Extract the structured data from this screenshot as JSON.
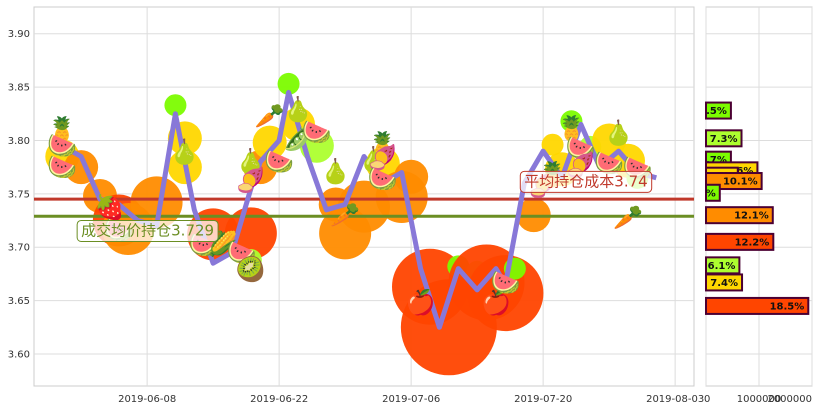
{
  "colors": {
    "price_line": "#8878d8",
    "avg_cost_line": "#c0392b",
    "avg_hold_line": "#6b8e23",
    "grid": "#dddddd",
    "bubble_small": "#7cfc00",
    "bubble_mid": "#ffd700",
    "bubble_large": "#ff8c00",
    "bubble_xl": "#ff4500"
  },
  "chart_data": [
    {
      "type": "line",
      "x_ticks": [
        "2019-06-08",
        "2019-06-22",
        "2019-07-06",
        "2019-07-20",
        "2019-08-03"
      ],
      "y_ticks": [
        "3.90",
        "3.85",
        "3.80",
        "3.75",
        "3.70",
        "3.65",
        "3.60"
      ],
      "ylim": [
        3.57,
        3.925
      ],
      "xlim": [
        "2019-05-27",
        "2019-08-05"
      ],
      "grid": true,
      "series": [
        {
          "values": [
            {
              "x": "2019-05-30",
              "y": 3.795
            },
            {
              "x": "2019-06-01",
              "y": 3.785
            },
            {
              "x": "2019-06-03",
              "y": 3.745
            },
            {
              "x": "2019-06-05",
              "y": 3.74
            },
            {
              "x": "2019-06-07",
              "y": 3.725
            },
            {
              "x": "2019-06-09",
              "y": 3.72
            },
            {
              "x": "2019-06-11",
              "y": 3.825
            },
            {
              "x": "2019-06-13",
              "y": 3.735
            },
            {
              "x": "2019-06-15",
              "y": 3.685
            },
            {
              "x": "2019-06-17",
              "y": 3.695
            },
            {
              "x": "2019-06-19",
              "y": 3.755
            },
            {
              "x": "2019-06-20",
              "y": 3.78
            },
            {
              "x": "2019-06-22",
              "y": 3.8
            },
            {
              "x": "2019-06-23",
              "y": 3.845
            },
            {
              "x": "2019-06-25",
              "y": 3.785
            },
            {
              "x": "2019-06-27",
              "y": 3.735
            },
            {
              "x": "2019-06-29",
              "y": 3.74
            },
            {
              "x": "2019-07-01",
              "y": 3.785
            },
            {
              "x": "2019-07-03",
              "y": 3.76
            },
            {
              "x": "2019-07-05",
              "y": 3.77
            },
            {
              "x": "2019-07-07",
              "y": 3.68
            },
            {
              "x": "2019-07-09",
              "y": 3.625
            },
            {
              "x": "2019-07-11",
              "y": 3.68
            },
            {
              "x": "2019-07-13",
              "y": 3.66
            },
            {
              "x": "2019-07-15",
              "y": 3.68
            },
            {
              "x": "2019-07-16",
              "y": 3.665
            },
            {
              "x": "2019-07-18",
              "y": 3.76
            },
            {
              "x": "2019-07-20",
              "y": 3.79
            },
            {
              "x": "2019-07-22",
              "y": 3.765
            },
            {
              "x": "2019-07-24",
              "y": 3.815
            },
            {
              "x": "2019-07-26",
              "y": 3.775
            },
            {
              "x": "2019-07-28",
              "y": 3.79
            },
            {
              "x": "2019-07-30",
              "y": 3.77
            },
            {
              "x": "2019-08-01",
              "y": 3.765
            }
          ]
        }
      ],
      "reference_lines": [
        {
          "y": 3.745,
          "color": "#c0392b"
        },
        {
          "y": 3.729,
          "color": "#6b8e23"
        }
      ],
      "annotations": [
        {
          "text": "平均持仓成本3.74",
          "x": "2019-07-18",
          "y": 3.757,
          "color": "#c0392b"
        },
        {
          "text": "成交均价持仓3.729",
          "x": "2019-06-01",
          "y": 3.711,
          "color": "#6b8e23"
        }
      ]
    },
    {
      "type": "bar",
      "orientation": "horizontal",
      "x_ticks": [
        "0",
        "1000000",
        "2000000"
      ],
      "xlim": [
        0,
        2000000
      ],
      "bars": [
        {
          "label": ".5%",
          "price": 3.828,
          "value": 470000,
          "color": "#7cfc00"
        },
        {
          "label": "7.3%",
          "price": 3.802,
          "value": 670000,
          "color": "#adff2f"
        },
        {
          "label": ".7%",
          "price": 3.782,
          "value": 470000,
          "color": "#7cfc00"
        },
        {
          "label": "9.6%",
          "price": 3.772,
          "value": 970000,
          "color": "#ffd700"
        },
        {
          "label": ".7%",
          "price": 3.767,
          "value": 600000,
          "color": "#ffd700"
        },
        {
          "label": "10.1%",
          "price": 3.762,
          "value": 1050000,
          "color": "#ff8c00"
        },
        {
          "label": "%",
          "price": 3.751,
          "value": 260000,
          "color": "#7cfc00"
        },
        {
          "label": "12.1%",
          "price": 3.73,
          "value": 1260000,
          "color": "#ff8c00"
        },
        {
          "label": "12.2%",
          "price": 3.705,
          "value": 1270000,
          "color": "#ff4500"
        },
        {
          "label": "6.1%",
          "price": 3.683,
          "value": 630000,
          "color": "#adff2f"
        },
        {
          "label": "7.4%",
          "price": 3.667,
          "value": 680000,
          "color": "#ffd700"
        },
        {
          "label": "18.5%",
          "price": 3.645,
          "value": 1930000,
          "color": "#ff4500"
        }
      ]
    }
  ],
  "fruits": [
    {
      "icon": "pineapple",
      "x": "2019-05-30",
      "y": 3.811
    },
    {
      "icon": "watermelon",
      "x": "2019-05-30",
      "y": 3.796
    },
    {
      "icon": "watermelon",
      "x": "2019-05-30",
      "y": 3.776
    },
    {
      "icon": "strawberry",
      "x": "2019-06-04",
      "y": 3.738
    },
    {
      "icon": "watermelon-slice",
      "x": "2019-06-05",
      "y": 3.717
    },
    {
      "icon": "pear",
      "x": "2019-06-12",
      "y": 3.79
    },
    {
      "icon": "watermelon-slice",
      "x": "2019-06-14",
      "y": 3.703
    },
    {
      "icon": "corn",
      "x": "2019-06-16",
      "y": 3.704
    },
    {
      "icon": "watermelon-slice",
      "x": "2019-06-18",
      "y": 3.696
    },
    {
      "icon": "kiwi",
      "x": "2019-06-19",
      "y": 3.68
    },
    {
      "icon": "pear",
      "x": "2019-06-19",
      "y": 3.781
    },
    {
      "icon": "radish",
      "x": "2019-06-19",
      "y": 3.764
    },
    {
      "icon": "carrot",
      "x": "2019-06-21",
      "y": 3.824
    },
    {
      "icon": "watermelon",
      "x": "2019-06-22",
      "y": 3.781
    },
    {
      "icon": "pea-pod",
      "x": "2019-06-24",
      "y": 3.803
    },
    {
      "icon": "pear",
      "x": "2019-06-24",
      "y": 3.83
    },
    {
      "icon": "watermelon",
      "x": "2019-06-26",
      "y": 3.809
    },
    {
      "icon": "pear",
      "x": "2019-06-28",
      "y": 3.772
    },
    {
      "icon": "carrot",
      "x": "2019-06-29",
      "y": 3.731
    },
    {
      "icon": "pear",
      "x": "2019-07-02",
      "y": 3.783
    },
    {
      "icon": "pineapple",
      "x": "2019-07-03",
      "y": 3.797
    },
    {
      "icon": "radish",
      "x": "2019-07-03",
      "y": 3.785
    },
    {
      "icon": "watermelon",
      "x": "2019-07-03",
      "y": 3.765
    },
    {
      "icon": "apple",
      "x": "2019-07-07",
      "y": 3.649
    },
    {
      "icon": "apple",
      "x": "2019-07-15",
      "y": 3.649
    },
    {
      "icon": "watermelon-slice",
      "x": "2019-07-16",
      "y": 3.668
    },
    {
      "icon": "radish",
      "x": "2019-07-20",
      "y": 3.759
    },
    {
      "icon": "pineapple",
      "x": "2019-07-21",
      "y": 3.769
    },
    {
      "icon": "pineapple",
      "x": "2019-07-23",
      "y": 3.812
    },
    {
      "icon": "watermelon",
      "x": "2019-07-24",
      "y": 3.794
    },
    {
      "icon": "radish",
      "x": "2019-07-24",
      "y": 3.778
    },
    {
      "icon": "pear",
      "x": "2019-07-28",
      "y": 3.808
    },
    {
      "icon": "watermelon",
      "x": "2019-07-27",
      "y": 3.78
    },
    {
      "icon": "carrot",
      "x": "2019-07-29",
      "y": 3.729
    },
    {
      "icon": "watermelon",
      "x": "2019-07-30",
      "y": 3.775
    }
  ],
  "bubbles": [
    {
      "x": "2019-05-30",
      "y": 3.785,
      "size": 2,
      "color": "#ffd700"
    },
    {
      "x": "2019-06-01",
      "y": 3.775,
      "size": 2,
      "color": "#ff8c00"
    },
    {
      "x": "2019-06-03",
      "y": 3.748,
      "size": 2,
      "color": "#ff8c00"
    },
    {
      "x": "2019-06-05",
      "y": 3.725,
      "size": 3,
      "color": "#ff4500"
    },
    {
      "x": "2019-06-06",
      "y": 3.717,
      "size": 3,
      "color": "#ff8c00"
    },
    {
      "x": "2019-06-09",
      "y": 3.742,
      "size": 3,
      "color": "#ff8c00"
    },
    {
      "x": "2019-06-11",
      "y": 3.833,
      "size": 1,
      "color": "#7cfc00"
    },
    {
      "x": "2019-06-12",
      "y": 3.802,
      "size": 2,
      "color": "#ffd700"
    },
    {
      "x": "2019-06-12",
      "y": 3.775,
      "size": 2,
      "color": "#ffd700"
    },
    {
      "x": "2019-06-15",
      "y": 3.712,
      "size": 3,
      "color": "#ff4500"
    },
    {
      "x": "2019-06-19",
      "y": 3.713,
      "size": 3,
      "color": "#ff4500"
    },
    {
      "x": "2019-06-19",
      "y": 3.688,
      "size": 1,
      "color": "#adff2f"
    },
    {
      "x": "2019-06-20",
      "y": 3.775,
      "size": 2,
      "color": "#ff8c00"
    },
    {
      "x": "2019-06-21",
      "y": 3.798,
      "size": 2,
      "color": "#ffd700"
    },
    {
      "x": "2019-06-23",
      "y": 3.853,
      "size": 1,
      "color": "#7cfc00"
    },
    {
      "x": "2019-06-24",
      "y": 3.815,
      "size": 2,
      "color": "#ffd700"
    },
    {
      "x": "2019-06-26",
      "y": 3.795,
      "size": 2,
      "color": "#adff2f"
    },
    {
      "x": "2019-06-28",
      "y": 3.74,
      "size": 2,
      "color": "#ff8c00"
    },
    {
      "x": "2019-06-29",
      "y": 3.713,
      "size": 3,
      "color": "#ff8c00"
    },
    {
      "x": "2019-07-01",
      "y": 3.738,
      "size": 3,
      "color": "#ff8c00"
    },
    {
      "x": "2019-07-03",
      "y": 3.778,
      "size": 2,
      "color": "#ffd700"
    },
    {
      "x": "2019-07-05",
      "y": 3.747,
      "size": 3,
      "color": "#ff8c00"
    },
    {
      "x": "2019-07-06",
      "y": 3.766,
      "size": 2,
      "color": "#ff8c00"
    },
    {
      "x": "2019-07-08",
      "y": 3.663,
      "size": 4,
      "color": "#ff4500"
    },
    {
      "x": "2019-07-10",
      "y": 3.625,
      "size": 5,
      "color": "#ff4500"
    },
    {
      "x": "2019-07-11",
      "y": 3.682,
      "size": 1,
      "color": "#7cfc00"
    },
    {
      "x": "2019-07-13",
      "y": 3.677,
      "size": 1,
      "color": "#adff2f"
    },
    {
      "x": "2019-07-14",
      "y": 3.667,
      "size": 4,
      "color": "#ff4500"
    },
    {
      "x": "2019-07-16",
      "y": 3.657,
      "size": 4,
      "color": "#ff4500"
    },
    {
      "x": "2019-07-17",
      "y": 3.68,
      "size": 1,
      "color": "#7cfc00"
    },
    {
      "x": "2019-07-19",
      "y": 3.73,
      "size": 2,
      "color": "#ff8c00"
    },
    {
      "x": "2019-07-21",
      "y": 3.796,
      "size": 1,
      "color": "#ffd700"
    },
    {
      "x": "2019-07-22",
      "y": 3.773,
      "size": 2,
      "color": "#ffd700"
    },
    {
      "x": "2019-07-23",
      "y": 3.818,
      "size": 1,
      "color": "#7cfc00"
    },
    {
      "x": "2019-07-25",
      "y": 3.794,
      "size": 1,
      "color": "#adff2f"
    },
    {
      "x": "2019-07-27",
      "y": 3.8,
      "size": 2,
      "color": "#ffd700"
    },
    {
      "x": "2019-07-29",
      "y": 3.781,
      "size": 2,
      "color": "#ffd700"
    },
    {
      "x": "2019-07-30",
      "y": 3.765,
      "size": 1,
      "color": "#adff2f"
    }
  ],
  "icon_glyphs": {
    "pineapple": "🍍",
    "watermelon": "🍉",
    "watermelon-slice": "🍉",
    "strawberry": "🍓",
    "pear": "🍐",
    "corn": "🌽",
    "kiwi": "🥝",
    "radish": "🍠",
    "carrot": "🥕",
    "pea-pod": "🫛",
    "apple": "🍎"
  }
}
